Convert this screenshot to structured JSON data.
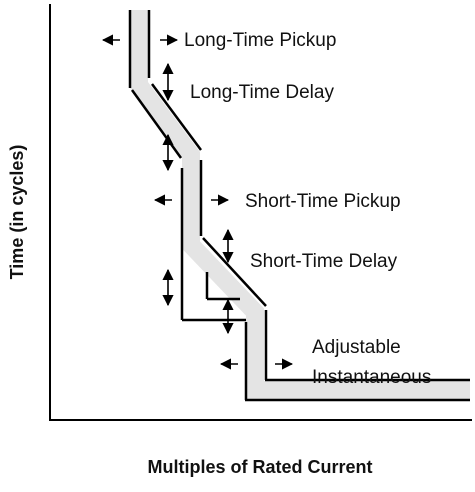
{
  "axes": {
    "x_label": "Multiples of Rated Current",
    "y_label": "Time (in cycles)"
  },
  "annotations": [
    "Long-Time Pickup",
    "Long-Time Delay",
    "Short-Time Pickup",
    "Short-Time Delay",
    "Adjustable",
    "Instantaneous"
  ]
}
